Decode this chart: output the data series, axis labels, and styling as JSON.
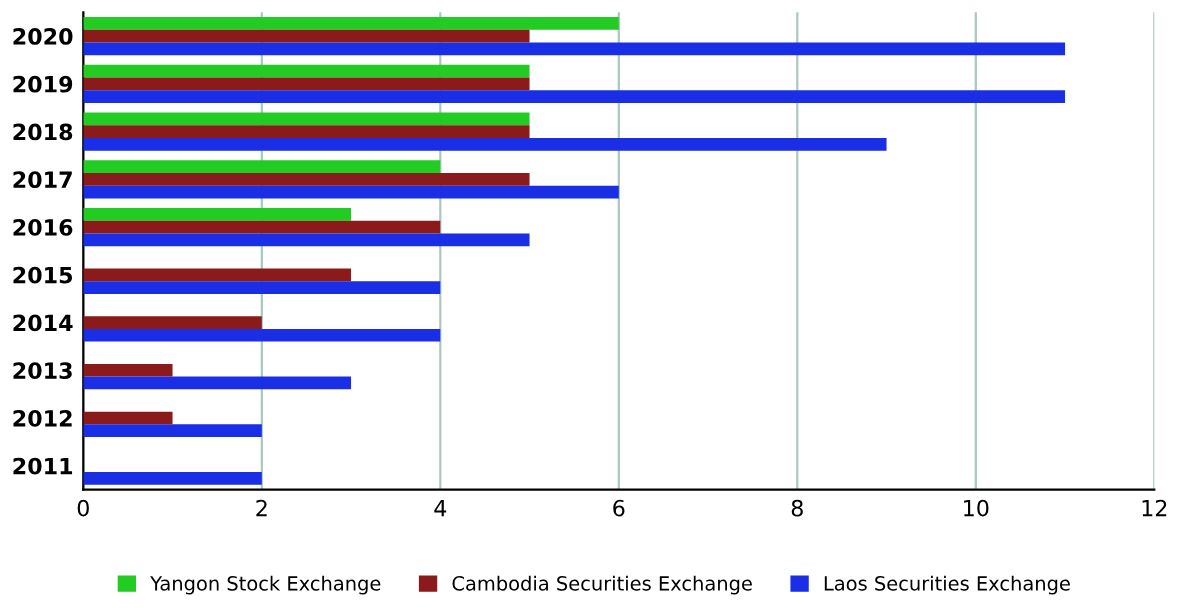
{
  "chart_data": {
    "type": "bar",
    "orientation": "horizontal",
    "categories": [
      "2020",
      "2019",
      "2018",
      "2017",
      "2016",
      "2015",
      "2014",
      "2013",
      "2012",
      "2011"
    ],
    "series": [
      {
        "name": "Yangon Stock Exchange",
        "color": "#22cc22",
        "values": [
          6,
          5,
          5,
          4,
          3,
          null,
          null,
          null,
          null,
          null
        ]
      },
      {
        "name": "Cambodia Securities Exchange",
        "color": "#8b1a1a",
        "values": [
          5,
          5,
          5,
          5,
          4,
          3,
          2,
          1,
          1,
          null
        ]
      },
      {
        "name": "Laos Securities Exchange",
        "color": "#1a2ee6",
        "values": [
          11,
          11,
          9,
          6,
          5,
          4,
          4,
          3,
          2,
          2
        ]
      }
    ],
    "xlim": [
      0,
      12
    ],
    "xticks": [
      0,
      2,
      4,
      6,
      8,
      10,
      12
    ],
    "grid": "x",
    "legend": "bottom"
  }
}
